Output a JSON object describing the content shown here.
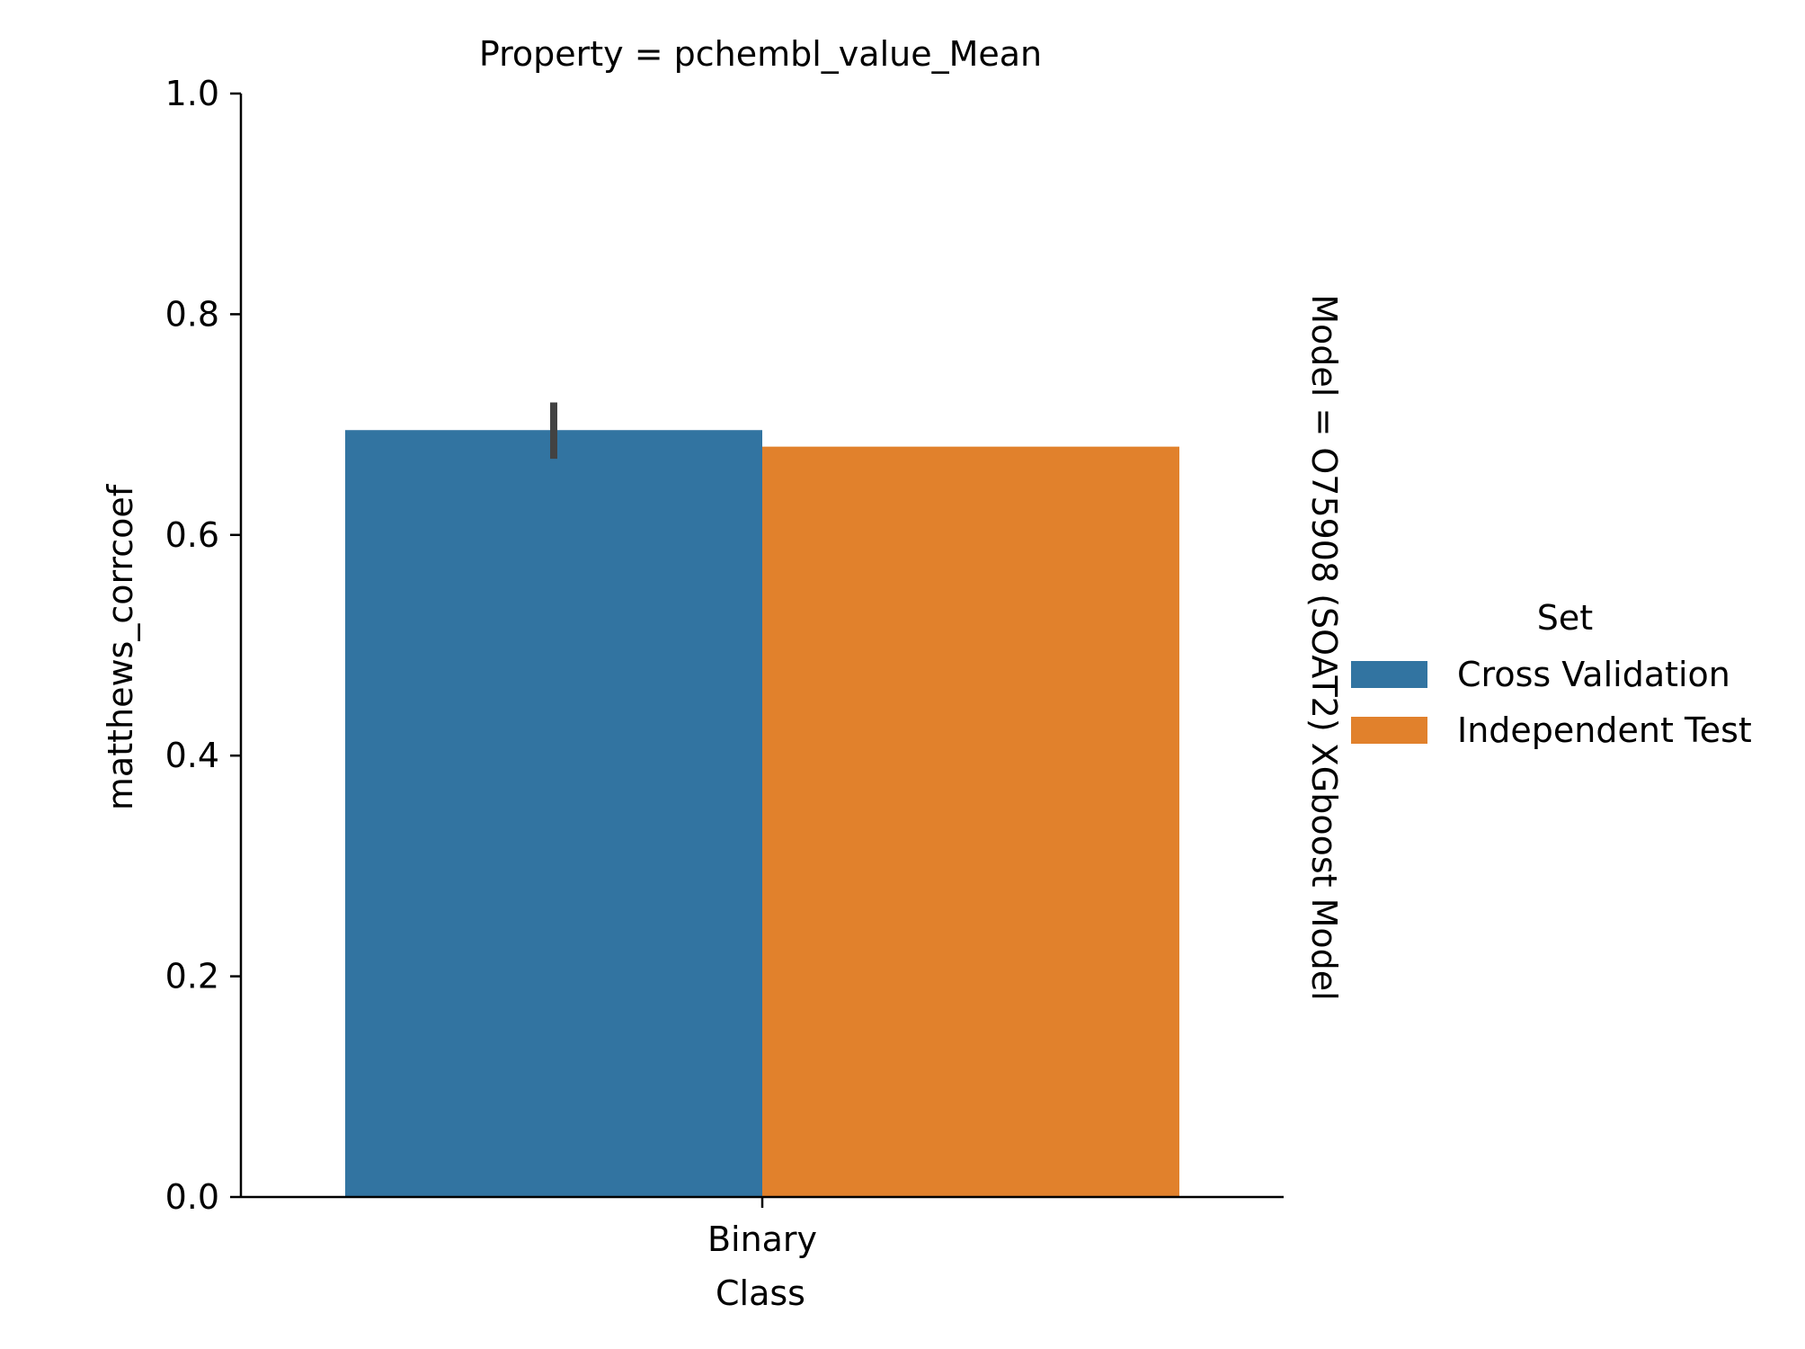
{
  "chart_data": {
    "type": "bar",
    "title": "Property = pchembl_value_Mean",
    "row_label": "Model = O75908 (SOAT2) XGboost Model",
    "xlabel": "Class",
    "ylabel": "matthews_corrcoef",
    "categories": [
      "Binary"
    ],
    "ylim": [
      0,
      1
    ],
    "yticks": [
      "0.0",
      "0.2",
      "0.4",
      "0.6",
      "0.8",
      "1.0"
    ],
    "grid": false,
    "legend": {
      "title": "Set",
      "placement": "right"
    },
    "series": [
      {
        "name": "Cross Validation",
        "color": "#3274a1",
        "values": [
          0.695
        ],
        "error": [
          [
            0.669,
            0.72
          ]
        ]
      },
      {
        "name": "Independent Test",
        "color": "#e1812c",
        "values": [
          0.68
        ],
        "error": [
          null
        ]
      }
    ]
  }
}
